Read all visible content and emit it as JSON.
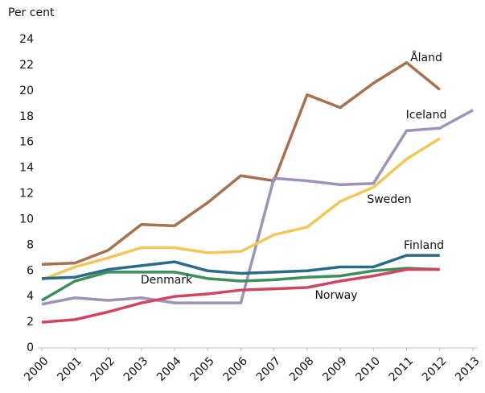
{
  "chart_data": {
    "type": "line",
    "y_label": "Per cent",
    "x": [
      2000,
      2001,
      2002,
      2003,
      2004,
      2005,
      2006,
      2007,
      2008,
      2009,
      2010,
      2011,
      2012,
      2013
    ],
    "xlim": [
      2000,
      2013
    ],
    "ylim": [
      0,
      24
    ],
    "yticks": [
      0,
      2,
      4,
      6,
      8,
      10,
      12,
      14,
      16,
      18,
      20,
      22,
      24
    ],
    "grid": false,
    "series": [
      {
        "name": "Åland",
        "color": "#a5714f",
        "values": [
          6.5,
          6.6,
          7.6,
          9.6,
          9.5,
          11.3,
          13.4,
          13.0,
          19.7,
          18.7,
          20.6,
          22.2,
          20.1,
          null
        ]
      },
      {
        "name": "Iceland",
        "color": "#9e92b8",
        "values": [
          3.4,
          3.9,
          3.7,
          3.9,
          3.5,
          3.5,
          3.5,
          13.2,
          13.0,
          12.7,
          12.8,
          16.9,
          17.1,
          18.5
        ]
      },
      {
        "name": "Sweden",
        "color": "#f1c75a",
        "values": [
          5.3,
          6.3,
          7.0,
          7.8,
          7.8,
          7.4,
          7.5,
          8.8,
          9.4,
          11.4,
          12.5,
          14.7,
          16.3,
          null
        ]
      },
      {
        "name": "Finland",
        "color": "#2b6a88",
        "values": [
          5.4,
          5.5,
          6.1,
          6.4,
          6.7,
          6.0,
          5.8,
          5.9,
          6.0,
          6.3,
          6.3,
          7.2,
          7.2,
          null
        ]
      },
      {
        "name": "Denmark",
        "color": "#3b8f5b",
        "values": [
          3.7,
          5.2,
          5.9,
          5.9,
          5.9,
          5.4,
          5.2,
          5.3,
          5.5,
          5.6,
          6.0,
          6.2,
          6.1,
          null
        ]
      },
      {
        "name": "Norway",
        "color": "#d04662",
        "values": [
          2.0,
          2.2,
          2.8,
          3.5,
          4.0,
          4.2,
          4.5,
          4.6,
          4.7,
          5.2,
          5.6,
          6.1,
          6.1,
          null
        ]
      }
    ]
  }
}
